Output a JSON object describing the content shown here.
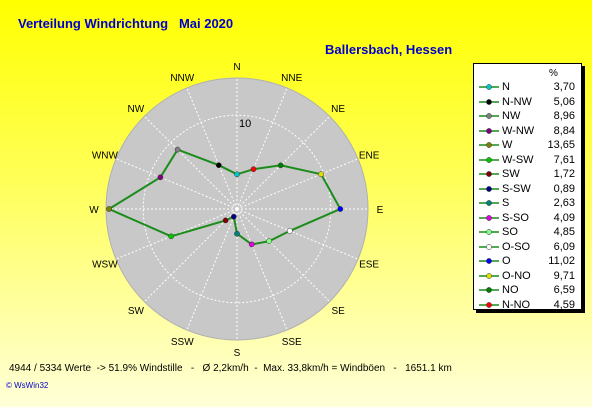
{
  "title": "Verteilung Windrichtung   Mai 2020",
  "location": "Ballersbach, Hessen",
  "footer": "4944 / 5334 Werte  -> 51.9% Windstille   -   Ø 2,2km/h  -  Max. 33,8km/h = Windböen   -   1651.1 km",
  "brand": "© WsWin32",
  "colors": {
    "background_top": "#ffff00",
    "background_bottom": "#ffffd8",
    "title": "#0000cc",
    "plot_disc": "#c8c8c8",
    "series_line": "#1a8c1a"
  },
  "chart_data": {
    "type": "radar",
    "unit": "%",
    "ring_label": "10",
    "rmax": 13.65,
    "ring_value": 10,
    "directions": [
      "N",
      "NNE",
      "NE",
      "ENE",
      "E",
      "ESE",
      "SE",
      "SSE",
      "S",
      "SSW",
      "SW",
      "WSW",
      "W",
      "WNW",
      "NW",
      "NNW"
    ],
    "values": [
      3.7,
      4.59,
      6.59,
      9.71,
      11.02,
      6.09,
      4.85,
      4.09,
      2.63,
      0.89,
      1.72,
      7.61,
      13.65,
      8.84,
      8.96,
      5.06
    ],
    "legend": [
      {
        "name": "N",
        "value": "3,70",
        "color": "#00c8c8"
      },
      {
        "name": "N-NW",
        "value": "5,06",
        "color": "#000000"
      },
      {
        "name": "NW",
        "value": "8,96",
        "color": "#808080"
      },
      {
        "name": "W-NW",
        "value": "8,84",
        "color": "#800080"
      },
      {
        "name": "W",
        "value": "13,65",
        "color": "#808000"
      },
      {
        "name": "W-SW",
        "value": "7,61",
        "color": "#00c800"
      },
      {
        "name": "SW",
        "value": "1,72",
        "color": "#800000"
      },
      {
        "name": "S-SW",
        "value": "0,89",
        "color": "#000080"
      },
      {
        "name": "S",
        "value": "2,63",
        "color": "#008080"
      },
      {
        "name": "S-SO",
        "value": "4,09",
        "color": "#e000e0"
      },
      {
        "name": "SO",
        "value": "4,85",
        "color": "#80ff80"
      },
      {
        "name": "O-SO",
        "value": "6,09",
        "color": "#ffffff"
      },
      {
        "name": "O",
        "value": "11,02",
        "color": "#0000ff"
      },
      {
        "name": "O-NO",
        "value": "9,71",
        "color": "#e0e000"
      },
      {
        "name": "NO",
        "value": "6,59",
        "color": "#008000"
      },
      {
        "name": "N-NO",
        "value": "4,59",
        "color": "#ff0000"
      }
    ]
  }
}
